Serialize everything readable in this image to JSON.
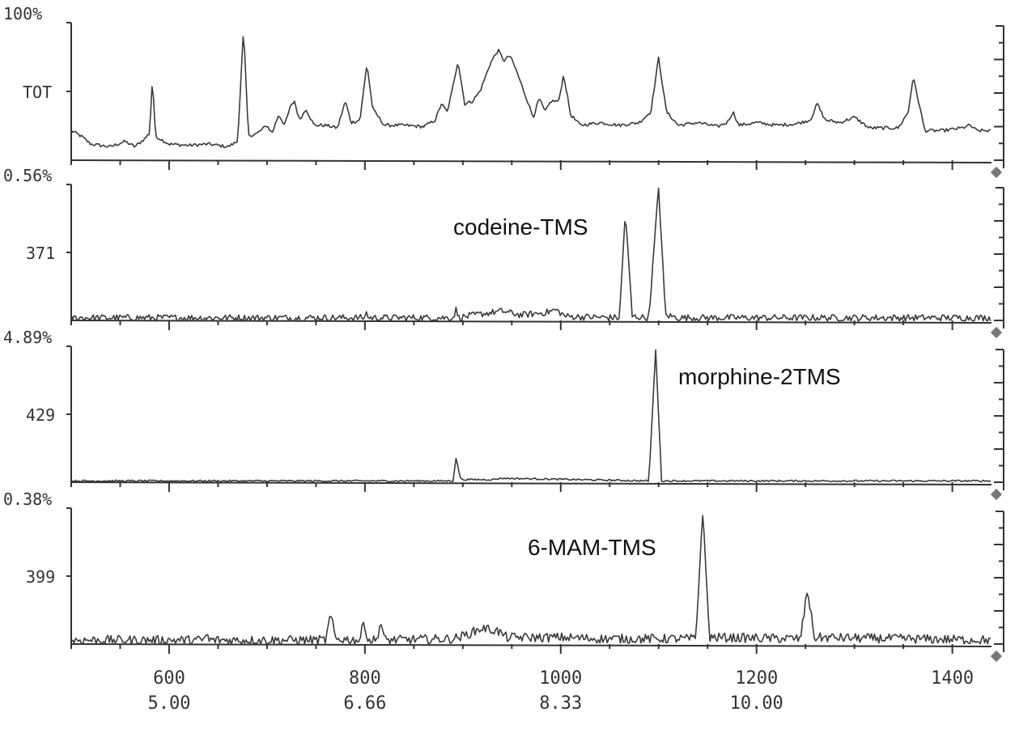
{
  "chart_data": {
    "type": "line",
    "x_axis": {
      "scan_range": [
        500,
        1440
      ],
      "scan_ticks": [
        "600",
        "800",
        "1000",
        "1200",
        "1400"
      ],
      "time_ticks": [
        "5.00",
        "6.66",
        "8.33",
        "10.00"
      ]
    },
    "panels": [
      {
        "id": "tot",
        "top_label": "100%",
        "mid_label": "TOT",
        "baseline": 0.1,
        "noise": 0.012,
        "points": [
          [
            500,
            0.22
          ],
          [
            510,
            0.18
          ],
          [
            520,
            0.12
          ],
          [
            540,
            0.1
          ],
          [
            555,
            0.14
          ],
          [
            565,
            0.1
          ],
          [
            575,
            0.16
          ],
          [
            580,
            0.2
          ],
          [
            583,
            0.62
          ],
          [
            586,
            0.18
          ],
          [
            600,
            0.12
          ],
          [
            620,
            0.11
          ],
          [
            640,
            0.12
          ],
          [
            660,
            0.1
          ],
          [
            670,
            0.14
          ],
          [
            676,
            0.98
          ],
          [
            681,
            0.18
          ],
          [
            690,
            0.2
          ],
          [
            700,
            0.26
          ],
          [
            705,
            0.2
          ],
          [
            712,
            0.34
          ],
          [
            718,
            0.26
          ],
          [
            724,
            0.4
          ],
          [
            728,
            0.44
          ],
          [
            733,
            0.3
          ],
          [
            740,
            0.38
          ],
          [
            748,
            0.26
          ],
          [
            760,
            0.26
          ],
          [
            772,
            0.24
          ],
          [
            780,
            0.44
          ],
          [
            786,
            0.28
          ],
          [
            795,
            0.3
          ],
          [
            802,
            0.72
          ],
          [
            808,
            0.38
          ],
          [
            820,
            0.26
          ],
          [
            840,
            0.26
          ],
          [
            860,
            0.25
          ],
          [
            872,
            0.3
          ],
          [
            878,
            0.42
          ],
          [
            884,
            0.36
          ],
          [
            888,
            0.48
          ],
          [
            895,
            0.74
          ],
          [
            902,
            0.42
          ],
          [
            910,
            0.44
          ],
          [
            918,
            0.52
          ],
          [
            928,
            0.72
          ],
          [
            936,
            0.82
          ],
          [
            942,
            0.74
          ],
          [
            948,
            0.78
          ],
          [
            954,
            0.68
          ],
          [
            962,
            0.52
          ],
          [
            972,
            0.32
          ],
          [
            978,
            0.46
          ],
          [
            984,
            0.36
          ],
          [
            990,
            0.44
          ],
          [
            998,
            0.44
          ],
          [
            1003,
            0.64
          ],
          [
            1010,
            0.34
          ],
          [
            1020,
            0.26
          ],
          [
            1040,
            0.28
          ],
          [
            1060,
            0.26
          ],
          [
            1080,
            0.28
          ],
          [
            1092,
            0.36
          ],
          [
            1100,
            0.76
          ],
          [
            1108,
            0.36
          ],
          [
            1120,
            0.26
          ],
          [
            1140,
            0.28
          ],
          [
            1160,
            0.25
          ],
          [
            1170,
            0.28
          ],
          [
            1176,
            0.36
          ],
          [
            1182,
            0.26
          ],
          [
            1200,
            0.28
          ],
          [
            1220,
            0.26
          ],
          [
            1240,
            0.27
          ],
          [
            1255,
            0.3
          ],
          [
            1262,
            0.42
          ],
          [
            1270,
            0.3
          ],
          [
            1285,
            0.28
          ],
          [
            1300,
            0.32
          ],
          [
            1315,
            0.24
          ],
          [
            1330,
            0.24
          ],
          [
            1345,
            0.24
          ],
          [
            1355,
            0.36
          ],
          [
            1360,
            0.62
          ],
          [
            1366,
            0.42
          ],
          [
            1372,
            0.22
          ],
          [
            1390,
            0.22
          ],
          [
            1410,
            0.24
          ],
          [
            1418,
            0.26
          ],
          [
            1425,
            0.22
          ],
          [
            1440,
            0.22
          ]
        ]
      },
      {
        "id": "m371",
        "top_label": "0.56%",
        "mid_label": "371",
        "baseline": 0.02,
        "noise": 0.025,
        "annotation": "codeine-TMS",
        "points": [
          [
            500,
            0.02
          ],
          [
            800,
            0.02
          ],
          [
            801,
            0.1
          ],
          [
            803,
            0.02
          ],
          [
            890,
            0.02
          ],
          [
            893,
            0.08
          ],
          [
            896,
            0.02
          ],
          [
            920,
            0.05
          ],
          [
            940,
            0.07
          ],
          [
            960,
            0.04
          ],
          [
            985,
            0.06
          ],
          [
            995,
            0.08
          ],
          [
            1005,
            0.03
          ],
          [
            1060,
            0.02
          ],
          [
            1066,
            0.82
          ],
          [
            1073,
            0.03
          ],
          [
            1090,
            0.02
          ],
          [
            1100,
            1.0
          ],
          [
            1107,
            0.04
          ],
          [
            1120,
            0.02
          ],
          [
            1440,
            0.02
          ]
        ]
      },
      {
        "id": "m429",
        "top_label": "4.89%",
        "mid_label": "429",
        "baseline": 0.01,
        "noise": 0.006,
        "annotation": "morphine-2TMS",
        "points": [
          [
            500,
            0.01
          ],
          [
            890,
            0.01
          ],
          [
            893,
            0.18
          ],
          [
            898,
            0.02
          ],
          [
            930,
            0.02
          ],
          [
            940,
            0.03
          ],
          [
            1090,
            0.01
          ],
          [
            1097,
            1.0
          ],
          [
            1103,
            0.01
          ],
          [
            1440,
            0.01
          ]
        ]
      },
      {
        "id": "m399",
        "top_label": "0.38%",
        "mid_label": "399",
        "baseline": 0.03,
        "noise": 0.035,
        "annotation": "6-MAM-TMS",
        "points": [
          [
            500,
            0.03
          ],
          [
            635,
            0.03
          ],
          [
            638,
            0.07
          ],
          [
            641,
            0.03
          ],
          [
            760,
            0.03
          ],
          [
            765,
            0.22
          ],
          [
            770,
            0.04
          ],
          [
            795,
            0.03
          ],
          [
            799,
            0.18
          ],
          [
            803,
            0.03
          ],
          [
            812,
            0.03
          ],
          [
            816,
            0.17
          ],
          [
            820,
            0.03
          ],
          [
            890,
            0.04
          ],
          [
            900,
            0.06
          ],
          [
            920,
            0.12
          ],
          [
            935,
            0.1
          ],
          [
            945,
            0.05
          ],
          [
            1000,
            0.05
          ],
          [
            1040,
            0.04
          ],
          [
            1138,
            0.04
          ],
          [
            1145,
            1.0
          ],
          [
            1152,
            0.05
          ],
          [
            1245,
            0.04
          ],
          [
            1252,
            0.42
          ],
          [
            1259,
            0.05
          ],
          [
            1440,
            0.03
          ]
        ]
      }
    ]
  }
}
